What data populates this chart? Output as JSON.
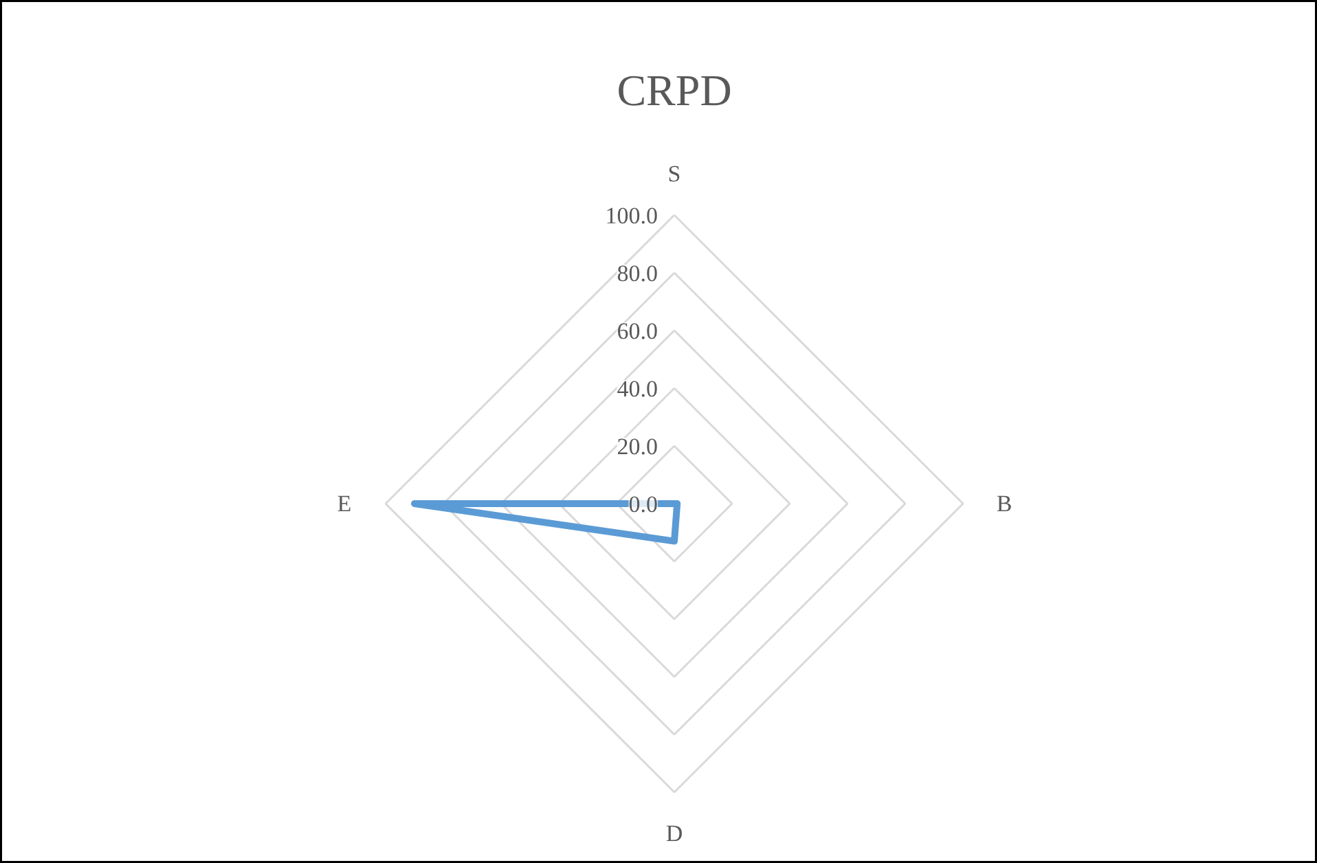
{
  "chart_data": {
    "type": "radar",
    "title": "CRPD",
    "categories": [
      "S",
      "B",
      "D",
      "E"
    ],
    "series": [
      {
        "color": "#5b9bd5",
        "values": [
          0,
          1,
          13,
          90
        ]
      }
    ],
    "ylim": [
      0,
      100
    ],
    "yticks": [
      {
        "value": 0,
        "label": "0.0"
      },
      {
        "value": 20,
        "label": "20.0"
      },
      {
        "value": 40,
        "label": "40.0"
      },
      {
        "value": 60,
        "label": "60.0"
      },
      {
        "value": 80,
        "label": "80.0"
      },
      {
        "value": 100,
        "label": "100.0"
      }
    ],
    "grid": true
  }
}
